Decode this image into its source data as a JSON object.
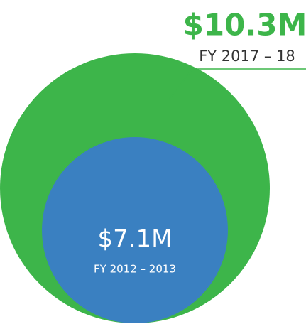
{
  "chart_data": {
    "type": "nested-circle",
    "categories": [
      "FY 2017 – 18",
      "FY 2012 – 2013"
    ],
    "values": [
      10.3,
      7.1
    ],
    "value_labels": [
      "$10.3M",
      "$7.1M"
    ],
    "colors": [
      "#3db54a",
      "#3a80c1"
    ]
  }
}
